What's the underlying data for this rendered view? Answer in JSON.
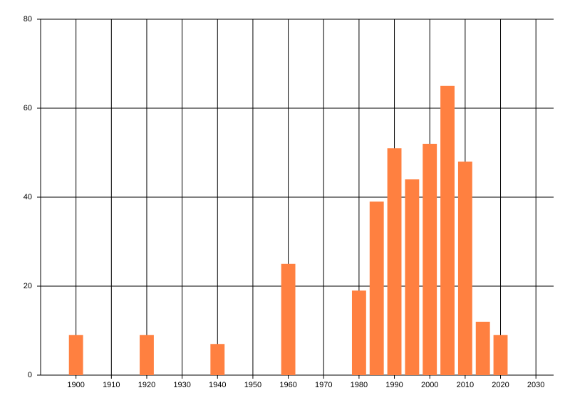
{
  "chart_data": {
    "type": "bar",
    "x": [
      1900,
      1920,
      1940,
      1960,
      1980,
      1985,
      1990,
      1995,
      2000,
      2005,
      2010,
      2015,
      2020
    ],
    "values": [
      9,
      9,
      7,
      25,
      19,
      39,
      51,
      44,
      52,
      65,
      48,
      12,
      9
    ],
    "color": "#ff8040",
    "xlim": [
      1890,
      2035
    ],
    "xticks": [
      1900,
      1910,
      1920,
      1930,
      1940,
      1950,
      1960,
      1970,
      1980,
      1990,
      2000,
      2010,
      2020,
      2030
    ],
    "ylim": [
      0,
      80
    ],
    "yticks": [
      0,
      20,
      40,
      60,
      80
    ],
    "grid": true
  }
}
